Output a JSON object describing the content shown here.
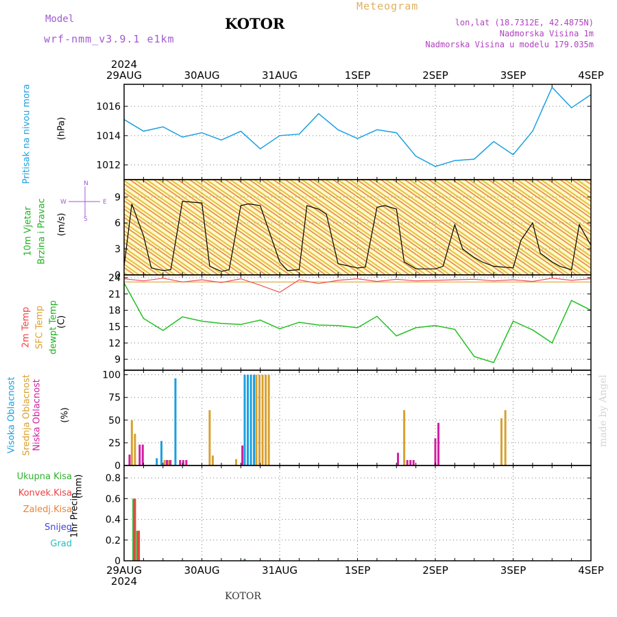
{
  "header": {
    "title": "KOTOR",
    "model_label": "Model",
    "model_name": "wrf-nmm_v3.9.1 e1km",
    "meteogram": "Meteogram",
    "lonlat": "lon,lat (18.7312E, 42.4875N)",
    "elevation": "Nadmorska Visina 1m",
    "elevation_model": "Nadmorska Visina u modelu 179.035m",
    "bottom_label": "KOTOR",
    "signature": "made by Angel"
  },
  "colors": {
    "pressure": "#1a9fe0",
    "temp2m": "#f05050",
    "sfc": "#e0a030",
    "dewpt": "#20c020",
    "high_cloud": "#1a9fe0",
    "mid_cloud": "#d8a030",
    "low_cloud": "#d020a0",
    "total_precip": "#30b030",
    "conv_precip": "#f04040",
    "frozen_precip": "#f08030",
    "snow": "#4040e0",
    "hail": "#20c0c0"
  },
  "chart_data": [
    {
      "type": "line",
      "id": "pressure",
      "xlabel": "",
      "ylabel": "Pritisak na nivou mora",
      "unit": "(hPa)",
      "year": "2024",
      "x_ticks": [
        "29AUG",
        "30AUG",
        "31AUG",
        "1SEP",
        "2SEP",
        "3SEP",
        "4SEP"
      ],
      "ylim": [
        1011,
        1017.5
      ],
      "yticks": [
        1012,
        1014,
        1016
      ],
      "x": [
        0,
        0.25,
        0.5,
        0.75,
        1.0,
        1.25,
        1.5,
        1.75,
        2.0,
        2.25,
        2.5,
        2.75,
        3.0,
        3.25,
        3.5,
        3.75,
        4.0,
        4.25,
        4.5,
        4.75,
        5.0,
        5.25,
        5.5,
        5.75,
        6.0
      ],
      "series": [
        {
          "values": [
            1015.1,
            1014.3,
            1014.6,
            1013.9,
            1014.2,
            1013.7,
            1014.3,
            1013.1,
            1014.0,
            1014.1,
            1015.5,
            1014.4,
            1013.8,
            1014.4,
            1014.2,
            1012.6,
            1011.9,
            1012.3,
            1012.4,
            1013.6,
            1012.7,
            1014.3,
            1017.3,
            1015.9,
            1016.8
          ]
        }
      ]
    },
    {
      "type": "line",
      "id": "wind",
      "xlabel": "",
      "ylabel": "10m Vjetar",
      "ylabel2": "Brzina i Pravac",
      "unit": "(m/s)",
      "compass": "N",
      "west": "W",
      "east": "E",
      "south": "S",
      "ylim": [
        0,
        11
      ],
      "yticks": [
        0,
        3,
        6,
        9
      ],
      "x": [
        0,
        0.1,
        0.25,
        0.35,
        0.5,
        0.6,
        0.75,
        1.0,
        1.1,
        1.25,
        1.35,
        1.5,
        1.6,
        1.75,
        2.0,
        2.1,
        2.25,
        2.35,
        2.5,
        2.6,
        2.75,
        3.0,
        3.1,
        3.25,
        3.35,
        3.5,
        3.6,
        3.75,
        4.0,
        4.1,
        4.25,
        4.35,
        4.5,
        4.6,
        4.75,
        5.0,
        5.1,
        5.25,
        5.35,
        5.5,
        5.6,
        5.75,
        5.85,
        6.0
      ],
      "series": [
        {
          "name": "",
          "values": [
            1.0,
            8.2,
            4.5,
            0.8,
            0.5,
            0.6,
            8.5,
            8.3,
            1.0,
            0.4,
            0.6,
            8.0,
            8.2,
            8.0,
            1.5,
            0.5,
            0.6,
            8.0,
            7.6,
            7.0,
            1.3,
            0.8,
            0.9,
            7.8,
            8.0,
            7.6,
            1.5,
            0.7,
            0.7,
            1.0,
            5.8,
            3.0,
            2.0,
            1.5,
            1.0,
            0.8,
            4.0,
            6.0,
            2.5,
            1.5,
            1.0,
            0.6,
            5.8,
            3.4
          ]
        }
      ]
    },
    {
      "type": "line",
      "id": "temperature",
      "xlabel": "",
      "ylabel": "2m Temp",
      "ylabel2": "SFC Temp",
      "ylabel3": "dewpt Temp",
      "unit": "(C)",
      "ylim": [
        7,
        24.5
      ],
      "yticks": [
        9,
        12,
        15,
        18,
        21,
        24
      ],
      "x": [
        0,
        0.25,
        0.5,
        0.75,
        1.0,
        1.25,
        1.5,
        1.75,
        2.0,
        2.25,
        2.5,
        2.75,
        3.0,
        3.25,
        3.5,
        3.75,
        4.0,
        4.25,
        4.5,
        4.75,
        5.0,
        5.25,
        5.5,
        5.75,
        6.0
      ],
      "series": [
        {
          "name": "2m Temp",
          "values": [
            23.8,
            23.4,
            23.9,
            23.2,
            23.6,
            23.1,
            23.8,
            22.6,
            21.3,
            23.6,
            22.9,
            23.5,
            23.8,
            23.3,
            23.7,
            23.4,
            23.5,
            23.6,
            23.7,
            23.4,
            23.6,
            23.3,
            23.9,
            23.5,
            23.8
          ]
        },
        {
          "name": "SFC Temp",
          "values": [
            23.2,
            23.2,
            23.2,
            23.2,
            23.2,
            23.2,
            23.2,
            23.2,
            23.2,
            23.2,
            23.2,
            23.2,
            23.2,
            23.2,
            23.2,
            23.2,
            23.2,
            23.2,
            23.2,
            23.2,
            23.2,
            23.2,
            23.2,
            23.2,
            23.2
          ]
        },
        {
          "name": "dewpt Temp",
          "values": [
            23.0,
            16.5,
            14.3,
            16.8,
            16.0,
            15.6,
            15.4,
            16.2,
            14.6,
            15.8,
            15.3,
            15.2,
            14.8,
            16.9,
            13.3,
            14.8,
            15.2,
            14.5,
            9.5,
            8.4,
            16.0,
            14.4,
            12.0,
            19.8,
            18.0
          ]
        }
      ]
    },
    {
      "type": "bar",
      "id": "clouds",
      "xlabel": "",
      "ylabel": "Visoka Oblacnost",
      "ylabel2": "Srednja Oblacnost",
      "ylabel3": "Niska Oblacnost",
      "unit": "(%)",
      "ylim": [
        0,
        105
      ],
      "yticks": [
        0,
        25,
        50,
        75,
        100
      ],
      "series": [
        {
          "name": "Visoka Oblacnost",
          "x": [
            0.42,
            0.48,
            0.66,
            1.55,
            1.59,
            1.63,
            1.67
          ],
          "values": [
            8,
            27,
            96,
            100,
            100,
            100,
            100
          ]
        },
        {
          "name": "Srednja Oblacnost",
          "x": [
            0.1,
            0.14,
            0.52,
            0.56,
            0.6,
            1.1,
            1.14,
            1.44,
            1.7,
            1.74,
            1.78,
            1.82,
            1.86,
            3.6,
            4.85,
            4.9
          ],
          "values": [
            50,
            35,
            6,
            6,
            6,
            61,
            11,
            7,
            100,
            100,
            100,
            100,
            100,
            61,
            52,
            61
          ]
        },
        {
          "name": "Niska Oblacnost",
          "x": [
            0.07,
            0.2,
            0.24,
            0.55,
            0.59,
            0.72,
            0.76,
            0.8,
            1.52,
            3.52,
            3.64,
            3.68,
            3.72,
            4.0,
            4.04
          ],
          "values": [
            12,
            23,
            23,
            6,
            6,
            6,
            6,
            6,
            22,
            14,
            6,
            6,
            6,
            30,
            47
          ]
        }
      ]
    },
    {
      "type": "bar",
      "id": "precip",
      "xlabel": "",
      "ylabel": "1hr Precip",
      "unit": "(mm)",
      "ylim": [
        0,
        0.92
      ],
      "yticks": [
        0,
        0.2,
        0.4,
        0.6,
        0.8
      ],
      "legend": [
        "Ukupna Kisa",
        "Konvek.Kisa",
        "Zaledj.Kisa",
        "Snijeg",
        "Grad"
      ],
      "series": [
        {
          "name": "Ukupna Kisa",
          "x": [
            0.12,
            0.17,
            1.55
          ],
          "values": [
            0.6,
            0.29,
            0.02
          ]
        },
        {
          "name": "Konvek.Kisa",
          "x": [
            0.14,
            0.19
          ],
          "values": [
            0.6,
            0.29
          ]
        }
      ]
    }
  ]
}
